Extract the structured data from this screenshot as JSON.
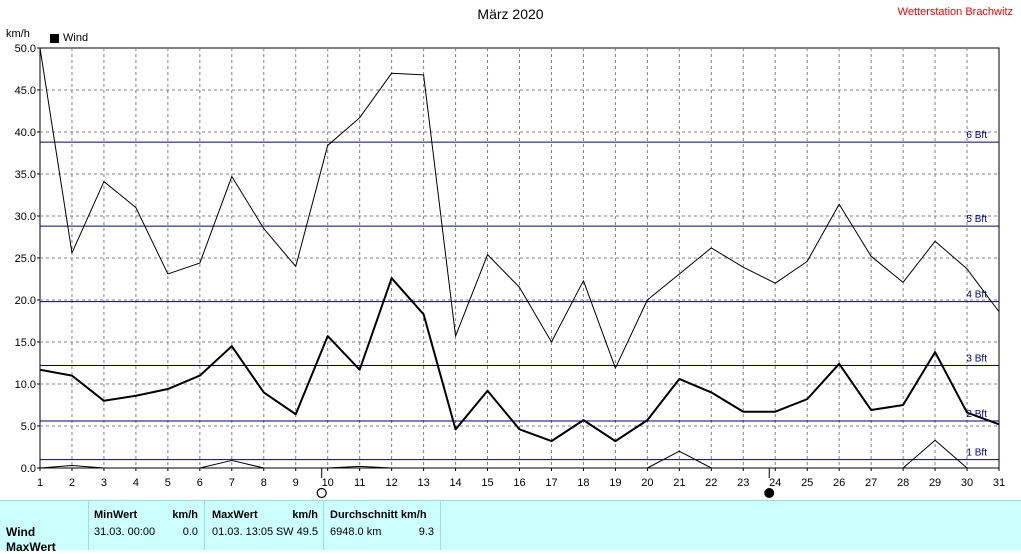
{
  "header": {
    "title": "März 2020",
    "station": "Wetterstation Brachwitz",
    "unit": "km/h",
    "legend_label": "Wind"
  },
  "chart_data": {
    "type": "line",
    "title": "März 2020",
    "ylabel": "km/h",
    "xlim": [
      1,
      31
    ],
    "ylim": [
      0,
      50
    ],
    "x_ticks": [
      1,
      2,
      3,
      4,
      5,
      6,
      7,
      8,
      9,
      10,
      11,
      12,
      13,
      14,
      15,
      16,
      17,
      18,
      19,
      20,
      21,
      22,
      23,
      24,
      25,
      26,
      27,
      28,
      29,
      30,
      31
    ],
    "y_ticks": [
      0.0,
      5.0,
      10.0,
      15.0,
      20.0,
      25.0,
      30.0,
      35.0,
      40.0,
      45.0,
      50.0
    ],
    "x": [
      1,
      2,
      3,
      4,
      5,
      6,
      7,
      8,
      9,
      10,
      11,
      12,
      13,
      14,
      15,
      16,
      17,
      18,
      19,
      20,
      21,
      22,
      23,
      24,
      25,
      26,
      27,
      28,
      29,
      30,
      31
    ],
    "series": [
      {
        "name": "Wind",
        "role": "average",
        "values": [
          11.7,
          11.0,
          8.0,
          8.6,
          9.4,
          11.0,
          14.5,
          9.0,
          6.4,
          15.7,
          11.7,
          22.6,
          18.3,
          4.6,
          9.2,
          4.6,
          3.2,
          5.7,
          3.2,
          5.7,
          10.6,
          9.0,
          6.7,
          6.7,
          8.2,
          12.4,
          6.9,
          7.5,
          13.8,
          6.6,
          5.2
        ]
      },
      {
        "role": "max",
        "values": [
          50.0,
          25.6,
          34.1,
          31.0,
          23.1,
          24.4,
          34.7,
          28.5,
          24.0,
          38.4,
          41.7,
          47.0,
          46.8,
          15.7,
          25.4,
          21.5,
          15.0,
          22.3,
          11.9,
          20.0,
          23.1,
          26.2,
          23.9,
          22.0,
          24.6,
          31.4,
          25.2,
          22.1,
          27.0,
          23.7,
          18.6
        ]
      },
      {
        "role": "min",
        "values": [
          0.0,
          0.3,
          0.0,
          0.0,
          0.0,
          0.0,
          0.9,
          0.0,
          0.0,
          0.0,
          0.2,
          0.0,
          0.0,
          0.0,
          0.0,
          0.0,
          0.0,
          0.0,
          0.0,
          0.0,
          2.0,
          0.0,
          0.0,
          0.0,
          0.0,
          0.0,
          0.0,
          0.0,
          3.3,
          0.0,
          0.0
        ]
      }
    ],
    "beaufort_lines": [
      {
        "label": "1 Bft",
        "value": 1.0
      },
      {
        "label": "2 Bft",
        "value": 5.6
      },
      {
        "label": "3 Bft",
        "value": 12.2
      },
      {
        "label": "4 Bft",
        "value": 19.8
      },
      {
        "label": "5 Bft",
        "value": 28.8
      },
      {
        "label": "6 Bft",
        "value": 38.8
      }
    ],
    "moon_phases": [
      {
        "day": 10,
        "phase": "full"
      },
      {
        "day": 24,
        "phase": "new"
      }
    ],
    "grid": true,
    "legend_position": "top-left",
    "colors": {
      "series": "#000000",
      "beaufort": "#000080",
      "grid": "#808080"
    }
  },
  "footer": {
    "row1_label": "Wind",
    "row2_label": "MaxWert",
    "min": {
      "header": "MinWert",
      "unit": "km/h",
      "date": "31.03.  00:00",
      "value": "0.0"
    },
    "max": {
      "header": "MaxWert",
      "unit": "km/h",
      "date": "01.03.  13:05",
      "value": "SW 49.5"
    },
    "avg": {
      "header": "Durchschnitt km/h",
      "distance": "6948.0 km",
      "value": "9.3"
    }
  }
}
